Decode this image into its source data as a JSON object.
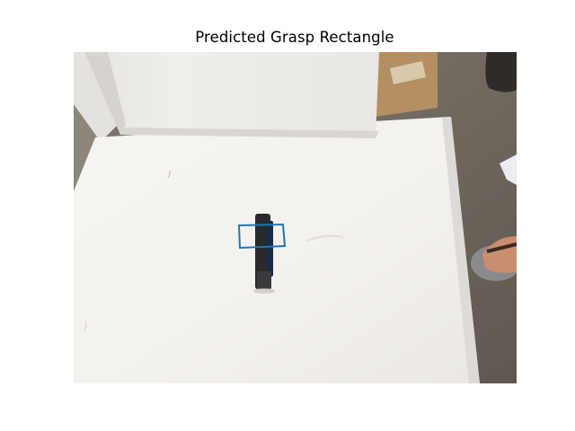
{
  "figure": {
    "title": "Predicted Grasp Rectangle"
  },
  "grasp_rectangle": {
    "color": "#1f77b4"
  },
  "scene": {
    "objects": [
      "stapler",
      "white-board",
      "cardboard-box",
      "shoe",
      "foot"
    ]
  }
}
